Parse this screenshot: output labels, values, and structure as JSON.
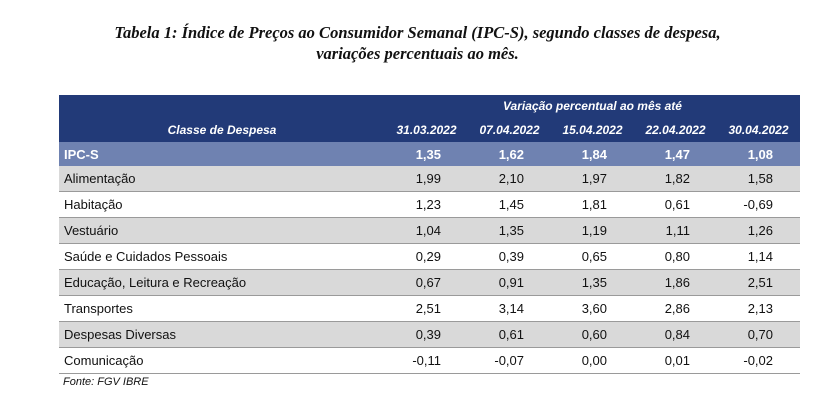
{
  "title": {
    "line1": "Tabela 1: Índice de Preços ao Consumidor Semanal (IPC-S), segundo classes de despesa,",
    "line2": "variações percentuais ao mês."
  },
  "table": {
    "span_header": "Variação percentual ao mês até",
    "category_header": "Classe de Despesa",
    "dates": [
      "31.03.2022",
      "07.04.2022",
      "15.04.2022",
      "22.04.2022",
      "30.04.2022"
    ],
    "summary": {
      "label": "IPC-S",
      "values": [
        "1,35",
        "1,62",
        "1,84",
        "1,47",
        "1,08"
      ]
    },
    "rows": [
      {
        "label": "Alimentação",
        "values": [
          "1,99",
          "2,10",
          "1,97",
          "1,82",
          "1,58"
        ]
      },
      {
        "label": "Habitação",
        "values": [
          "1,23",
          "1,45",
          "1,81",
          "0,61",
          "-0,69"
        ]
      },
      {
        "label": "Vestuário",
        "values": [
          "1,04",
          "1,35",
          "1,19",
          "1,11",
          "1,26"
        ]
      },
      {
        "label": "Saúde e Cuidados Pessoais",
        "values": [
          "0,29",
          "0,39",
          "0,65",
          "0,80",
          "1,14"
        ]
      },
      {
        "label": "Educação, Leitura e Recreação",
        "values": [
          "0,67",
          "0,91",
          "1,35",
          "1,86",
          "2,51"
        ]
      },
      {
        "label": "Transportes",
        "values": [
          "2,51",
          "3,14",
          "3,60",
          "2,86",
          "2,13"
        ]
      },
      {
        "label": "Despesas Diversas",
        "values": [
          "0,39",
          "0,61",
          "0,60",
          "0,84",
          "0,70"
        ]
      },
      {
        "label": "Comunicação",
        "values": [
          "-0,11",
          "-0,07",
          "0,00",
          "0,01",
          "-0,02"
        ]
      }
    ]
  },
  "source": "Fonte: FGV IBRE",
  "colors": {
    "header_bg": "#223a78",
    "summary_bg": "#6f82b1",
    "shaded_row_bg": "#d9d9d9"
  }
}
